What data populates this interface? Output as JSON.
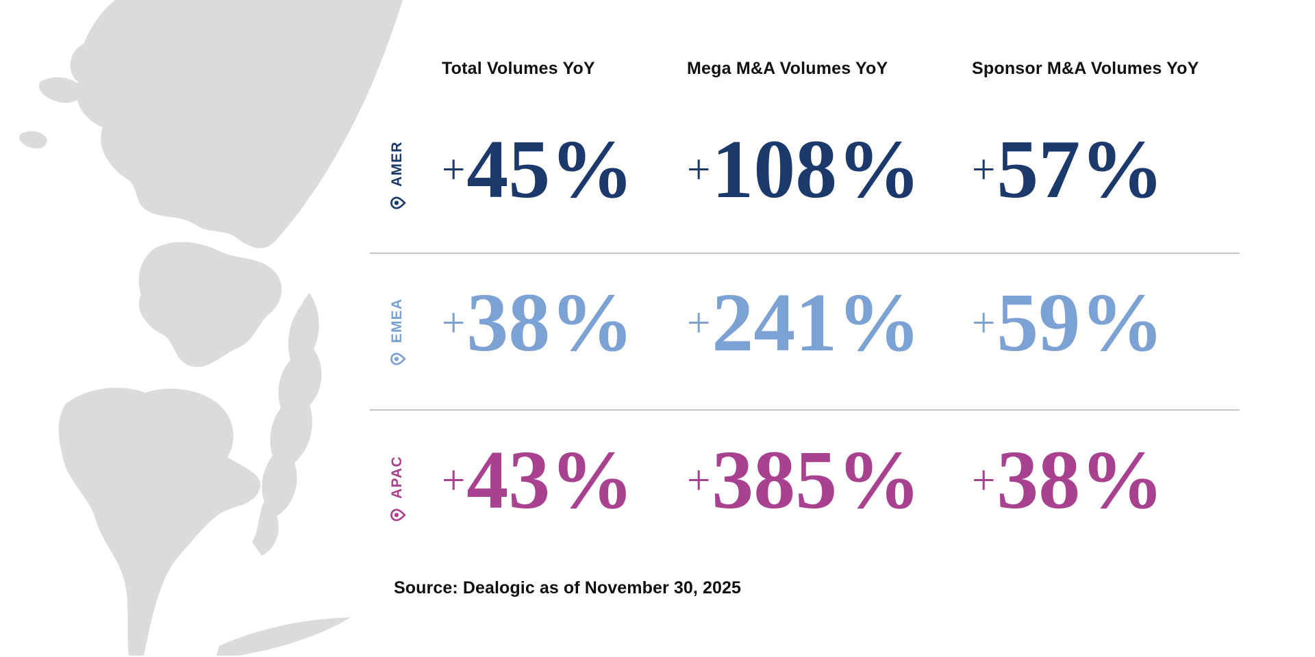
{
  "columns": [
    "Total Volumes YoY",
    "Mega M&A Volumes YoY",
    "Sponsor M&A Volumes YoY"
  ],
  "rows": [
    {
      "region": "AMER",
      "color": "#1b3a6b",
      "values": [
        "+45%",
        "+108%",
        "+57%"
      ]
    },
    {
      "region": "EMEA",
      "color": "#7ba2d3",
      "values": [
        "+38%",
        "+241%",
        "+59%"
      ]
    },
    {
      "region": "APAC",
      "color": "#a8418f",
      "values": [
        "+43%",
        "+385%",
        "+38%"
      ]
    }
  ],
  "source": "Source: Dealogic as of November 30, 2025",
  "colors": {
    "amer": "#1b3a6b",
    "emea": "#7ba2d3",
    "apac": "#a8418f",
    "map_gray": "#dadbdc",
    "divider": "#c3c4c5",
    "text": "#0e0e0e"
  },
  "icons": {
    "region_marker": "location-pin-icon"
  },
  "chart_data": {
    "type": "table",
    "title": "",
    "categories": [
      "AMER",
      "EMEA",
      "APAC"
    ],
    "series": [
      {
        "name": "Total Volumes YoY",
        "values": [
          "+45%",
          "+38%",
          "+43%"
        ]
      },
      {
        "name": "Mega M&A Volumes YoY",
        "values": [
          "+108%",
          "+241%",
          "+385%"
        ]
      },
      {
        "name": "Sponsor M&A Volumes YoY",
        "values": [
          "+57%",
          "+59%",
          "+38%"
        ]
      }
    ],
    "row_colors": [
      "#1b3a6b",
      "#7ba2d3",
      "#a8418f"
    ],
    "source": "Source: Dealogic as of November 30, 2025",
    "layout": "regions as rows with rotated labels, metrics as columns, grid lines between rows"
  }
}
